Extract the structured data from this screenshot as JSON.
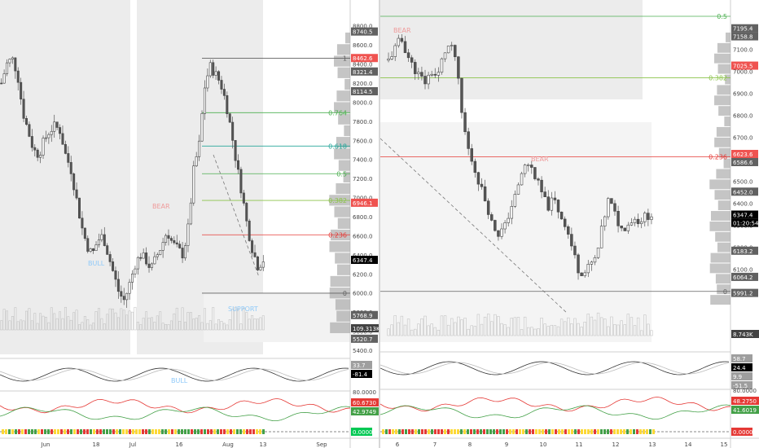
{
  "chart_data": [
    {
      "type": "candlestick",
      "panel": "left",
      "x_tick_labels": [
        "Jun",
        "18",
        "Jul",
        "16",
        "Aug",
        "13",
        "Sep"
      ],
      "y_tick_labels": [
        "8800.0",
        "8600.0",
        "8400.0",
        "8200.0",
        "8000.0",
        "7800.0",
        "7600.0",
        "7400.0",
        "7200.0",
        "7000.0",
        "6800.0",
        "6600.0",
        "6400.0",
        "6200.0",
        "6000.0",
        "5800.0",
        "5600.0",
        "5400.0"
      ],
      "ylim": [
        5400,
        8900
      ],
      "price_badges": [
        {
          "text": "8740.5",
          "value": 8740.5,
          "color": "#616161"
        },
        {
          "text": "8462.6",
          "value": 8462.6,
          "color": "#ef5350"
        },
        {
          "text": "8321.4",
          "value": 8321.4,
          "color": "#616161"
        },
        {
          "text": "8114.5",
          "value": 8114.5,
          "color": "#616161"
        },
        {
          "text": "6946.1",
          "value": 6946.1,
          "color": "#ef5350"
        },
        {
          "text": "6347.4",
          "value": 6347.4,
          "color": "#000000"
        },
        {
          "text": "5768.9",
          "value": 5768.9,
          "color": "#616161"
        },
        {
          "text": "5520.7",
          "value": 5520.7,
          "color": "#616161"
        }
      ],
      "volume_badge": "109.313K",
      "fib_levels": [
        {
          "label": "1",
          "value": 8460,
          "color": "#616161"
        },
        {
          "label": "0.764",
          "value": 7890,
          "color": "#4caf50"
        },
        {
          "label": "0.618",
          "value": 7540,
          "color": "#26a69a"
        },
        {
          "label": "0.5",
          "value": 7250,
          "color": "#4caf50"
        },
        {
          "label": "0.382",
          "value": 6970,
          "color": "#8bc34a"
        },
        {
          "label": "0.236",
          "value": 6610,
          "color": "#e53935"
        },
        {
          "label": "0",
          "value": 5998,
          "color": "#616161"
        }
      ],
      "annotations": [
        "BEAR",
        "BULL",
        "SUPPORT"
      ],
      "close": [
        8200,
        8400,
        8460,
        8300,
        7900,
        7700,
        7500,
        7450,
        7600,
        7700,
        7750,
        7700,
        7450,
        7300,
        7000,
        6700,
        6500,
        6400,
        6550,
        6600,
        6400,
        6200,
        6000,
        5920,
        6100,
        6300,
        6400,
        6350,
        6250,
        6380,
        6500,
        6650,
        6520,
        6460,
        6400,
        6700,
        7300,
        7550,
        8150,
        8380,
        8300,
        8200,
        8000,
        7700,
        7350,
        7050,
        6700,
        6450,
        6280,
        6347
      ],
      "oscillator_badges": [
        "33.7",
        "-81.4"
      ],
      "oscillator_label": "BULL",
      "rsi_badges": [
        "60.6730",
        "42.9749"
      ],
      "rsi_scale": "80.0000",
      "bottom_badge": "0.0000"
    },
    {
      "type": "candlestick",
      "panel": "right",
      "x_tick_labels": [
        "6",
        "7",
        "8",
        "9",
        "10",
        "11",
        "12",
        "13",
        "14",
        "15"
      ],
      "y_tick_labels": [
        "7100.0",
        "7000.0",
        "6900.0",
        "6800.0",
        "6700.0",
        "6600.0",
        "6500.0",
        "6400.0",
        "6300.0",
        "6200.0",
        "6100.0"
      ],
      "ylim": [
        5860,
        7250
      ],
      "price_badges": [
        {
          "text": "7195.4",
          "value": 7195.4,
          "color": "#616161"
        },
        {
          "text": "7158.8",
          "value": 7158.8,
          "color": "#616161"
        },
        {
          "text": "7025.5",
          "value": 7025.5,
          "color": "#ef5350"
        },
        {
          "text": "6623.6",
          "value": 6623.6,
          "color": "#ef5350"
        },
        {
          "text": "6586.6",
          "value": 6586.6,
          "color": "#616161"
        },
        {
          "text": "6452.0",
          "value": 6452.0,
          "color": "#616161"
        },
        {
          "text": "6347.4",
          "value": 6347.4,
          "color": "#000000"
        },
        {
          "text": "01:20:54",
          "value": 6310,
          "color": "#000000"
        },
        {
          "text": "6183.2",
          "value": 6183.2,
          "color": "#616161"
        },
        {
          "text": "6064.2",
          "value": 6064.2,
          "color": "#616161"
        },
        {
          "text": "5991.2",
          "value": 5991.2,
          "color": "#616161"
        }
      ],
      "volume_badge": "8.743K",
      "fib_levels": [
        {
          "label": "0.5",
          "value": 7250,
          "color": "#4caf50"
        },
        {
          "label": "0.382",
          "value": 6970,
          "color": "#8bc34a"
        },
        {
          "label": "0.236",
          "value": 6610,
          "color": "#e53935"
        },
        {
          "label": "0",
          "value": 5998,
          "color": "#616161"
        }
      ],
      "annotations": [
        "BEAR",
        "BEAR"
      ],
      "close": [
        7050,
        7100,
        7150,
        7080,
        7020,
        6980,
        6950,
        7000,
        6970,
        7080,
        7120,
        7060,
        6800,
        6650,
        6560,
        6480,
        6400,
        6300,
        6260,
        6290,
        6380,
        6450,
        6560,
        6580,
        6520,
        6450,
        6380,
        6420,
        6350,
        6300,
        6200,
        6100,
        6080,
        6120,
        6150,
        6300,
        6420,
        6350,
        6280,
        6300,
        6330,
        6320,
        6340,
        6347
      ],
      "oscillator_badges": [
        "58.7",
        "24.4",
        "9.9",
        "-51.5"
      ],
      "rsi_badges": [
        "48.2750",
        "41.6019"
      ],
      "rsi_scale": "80.0000",
      "bottom_badge": "0.0000"
    }
  ]
}
